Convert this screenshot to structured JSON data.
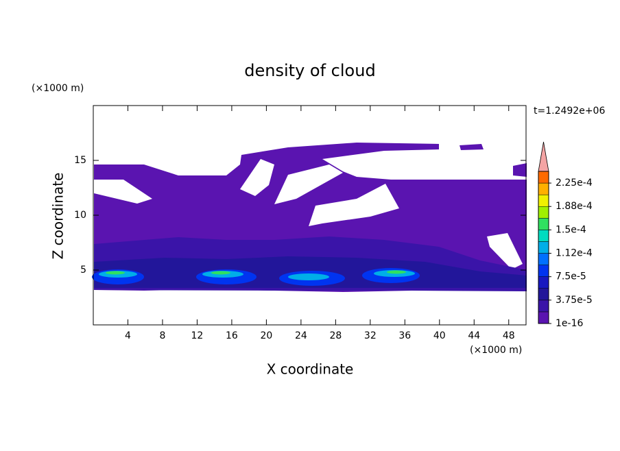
{
  "chart_data": {
    "type": "contour",
    "title": "density of cloud",
    "x_label": "X coordinate",
    "y_label": "Z coordinate",
    "x_unit": "(×1000 m)",
    "y_unit": "(×1000 m)",
    "time_label": "t=1.2492e+06",
    "xlim": [
      0,
      50
    ],
    "ylim": [
      0,
      20
    ],
    "xticks": [
      4,
      8,
      12,
      16,
      20,
      24,
      28,
      32,
      36,
      40,
      44,
      48
    ],
    "yticks": [
      5,
      10,
      15
    ],
    "colorbar": {
      "clim": [
        0,
        0.00024375
      ],
      "colors": [
        "#5a14b0",
        "#3a14a8",
        "#22169a",
        "#1818c0",
        "#0034f0",
        "#0070ff",
        "#00aee8",
        "#00dcc0",
        "#30e060",
        "#a0f000",
        "#f0f000",
        "#ffb000",
        "#ff6a00"
      ],
      "extend_color": "#f4a4a4",
      "ticks": [
        {
          "value": 1e-16,
          "label": "1e-16"
        },
        {
          "value": 3.75e-05,
          "label": "3.75e-5"
        },
        {
          "value": 7.5e-05,
          "label": "7.5e-5"
        },
        {
          "value": 0.0001125,
          "label": "1.12e-4"
        },
        {
          "value": 0.00015,
          "label": "1.5e-4"
        },
        {
          "value": 0.0001875,
          "label": "1.88e-4"
        },
        {
          "value": 0.000225,
          "label": "2.25e-4"
        }
      ]
    }
  }
}
